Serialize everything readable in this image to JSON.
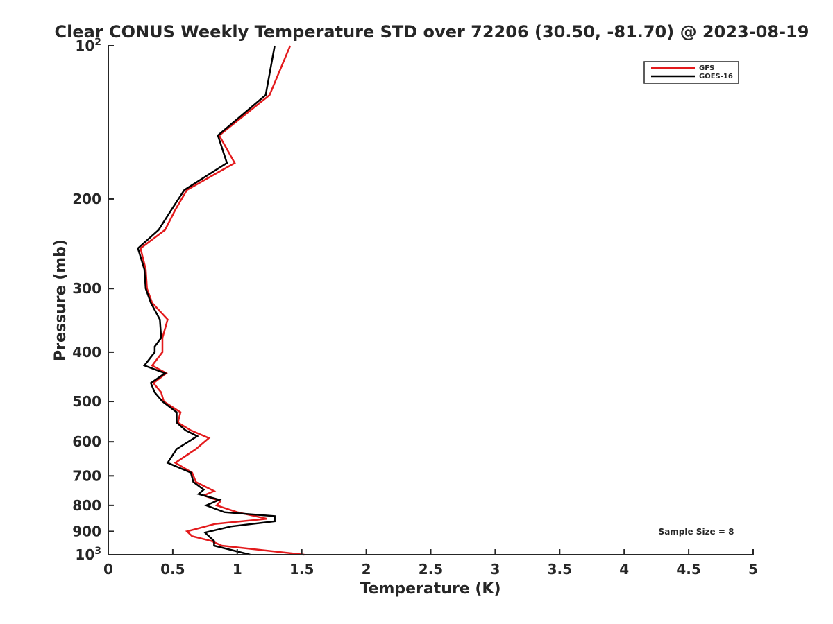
{
  "chart_data": {
    "type": "line",
    "title": "Clear CONUS Weekly Temperature STD over 72206 (30.50, -81.70) @ 2023-08-19",
    "xlabel": "Temperature (K)",
    "ylabel": "Pressure (mb)",
    "xlim": [
      0,
      5
    ],
    "ylim": [
      1000,
      100
    ],
    "y_scale": "log",
    "y_reversed": true,
    "grid": false,
    "legend_position": "top-right",
    "annotation": "Sample Size = 8",
    "x_ticks": [
      {
        "value": 0,
        "label": "0"
      },
      {
        "value": 0.5,
        "label": "0.5"
      },
      {
        "value": 1,
        "label": "1"
      },
      {
        "value": 1.5,
        "label": "1.5"
      },
      {
        "value": 2,
        "label": "2"
      },
      {
        "value": 2.5,
        "label": "2.5"
      },
      {
        "value": 3,
        "label": "3"
      },
      {
        "value": 3.5,
        "label": "3.5"
      },
      {
        "value": 4,
        "label": "4"
      },
      {
        "value": 4.5,
        "label": "4.5"
      },
      {
        "value": 5,
        "label": "5"
      }
    ],
    "y_ticks": [
      {
        "value": 100,
        "base": "10",
        "exp": "2"
      },
      {
        "value": 200,
        "label": "200"
      },
      {
        "value": 300,
        "label": "300"
      },
      {
        "value": 400,
        "label": "400"
      },
      {
        "value": 500,
        "label": "500"
      },
      {
        "value": 600,
        "label": "600"
      },
      {
        "value": 700,
        "label": "700"
      },
      {
        "value": 800,
        "label": "800"
      },
      {
        "value": 900,
        "label": "900"
      },
      {
        "value": 1000,
        "base": "10",
        "exp": "3"
      }
    ],
    "series": [
      {
        "name": "GFS",
        "color": "#e31a1c",
        "points": [
          [
            1.41,
            100
          ],
          [
            1.25,
            125
          ],
          [
            0.86,
            150
          ],
          [
            0.98,
            170
          ],
          [
            0.61,
            192
          ],
          [
            0.52,
            210
          ],
          [
            0.44,
            230
          ],
          [
            0.25,
            250
          ],
          [
            0.29,
            275
          ],
          [
            0.3,
            300
          ],
          [
            0.34,
            320
          ],
          [
            0.46,
            345
          ],
          [
            0.42,
            375
          ],
          [
            0.42,
            400
          ],
          [
            0.34,
            425
          ],
          [
            0.45,
            440
          ],
          [
            0.35,
            460
          ],
          [
            0.41,
            480
          ],
          [
            0.43,
            500
          ],
          [
            0.56,
            525
          ],
          [
            0.54,
            550
          ],
          [
            0.64,
            570
          ],
          [
            0.78,
            590
          ],
          [
            0.68,
            620
          ],
          [
            0.52,
            660
          ],
          [
            0.65,
            690
          ],
          [
            0.68,
            720
          ],
          [
            0.82,
            750
          ],
          [
            0.74,
            765
          ],
          [
            0.87,
            785
          ],
          [
            0.84,
            800
          ],
          [
            1.0,
            825
          ],
          [
            1.23,
            850
          ],
          [
            0.83,
            870
          ],
          [
            0.61,
            900
          ],
          [
            0.65,
            920
          ],
          [
            0.8,
            940
          ],
          [
            0.88,
            960
          ],
          [
            1.52,
            1000
          ]
        ]
      },
      {
        "name": "GOES-16",
        "color": "#000000",
        "points": [
          [
            1.29,
            100
          ],
          [
            1.22,
            125
          ],
          [
            0.85,
            150
          ],
          [
            0.92,
            170
          ],
          [
            0.59,
            192
          ],
          [
            0.49,
            210
          ],
          [
            0.39,
            230
          ],
          [
            0.23,
            250
          ],
          [
            0.28,
            275
          ],
          [
            0.29,
            300
          ],
          [
            0.33,
            320
          ],
          [
            0.4,
            345
          ],
          [
            0.41,
            375
          ],
          [
            0.36,
            390
          ],
          [
            0.36,
            400
          ],
          [
            0.28,
            425
          ],
          [
            0.44,
            440
          ],
          [
            0.33,
            460
          ],
          [
            0.36,
            480
          ],
          [
            0.42,
            500
          ],
          [
            0.53,
            525
          ],
          [
            0.53,
            550
          ],
          [
            0.6,
            570
          ],
          [
            0.69,
            585
          ],
          [
            0.53,
            620
          ],
          [
            0.46,
            660
          ],
          [
            0.64,
            690
          ],
          [
            0.66,
            720
          ],
          [
            0.74,
            745
          ],
          [
            0.7,
            760
          ],
          [
            0.86,
            780
          ],
          [
            0.76,
            800
          ],
          [
            0.9,
            825
          ],
          [
            1.29,
            840
          ],
          [
            1.29,
            860
          ],
          [
            0.95,
            880
          ],
          [
            0.75,
            905
          ],
          [
            0.82,
            940
          ],
          [
            0.82,
            960
          ],
          [
            1.1,
            1000
          ]
        ]
      }
    ]
  }
}
